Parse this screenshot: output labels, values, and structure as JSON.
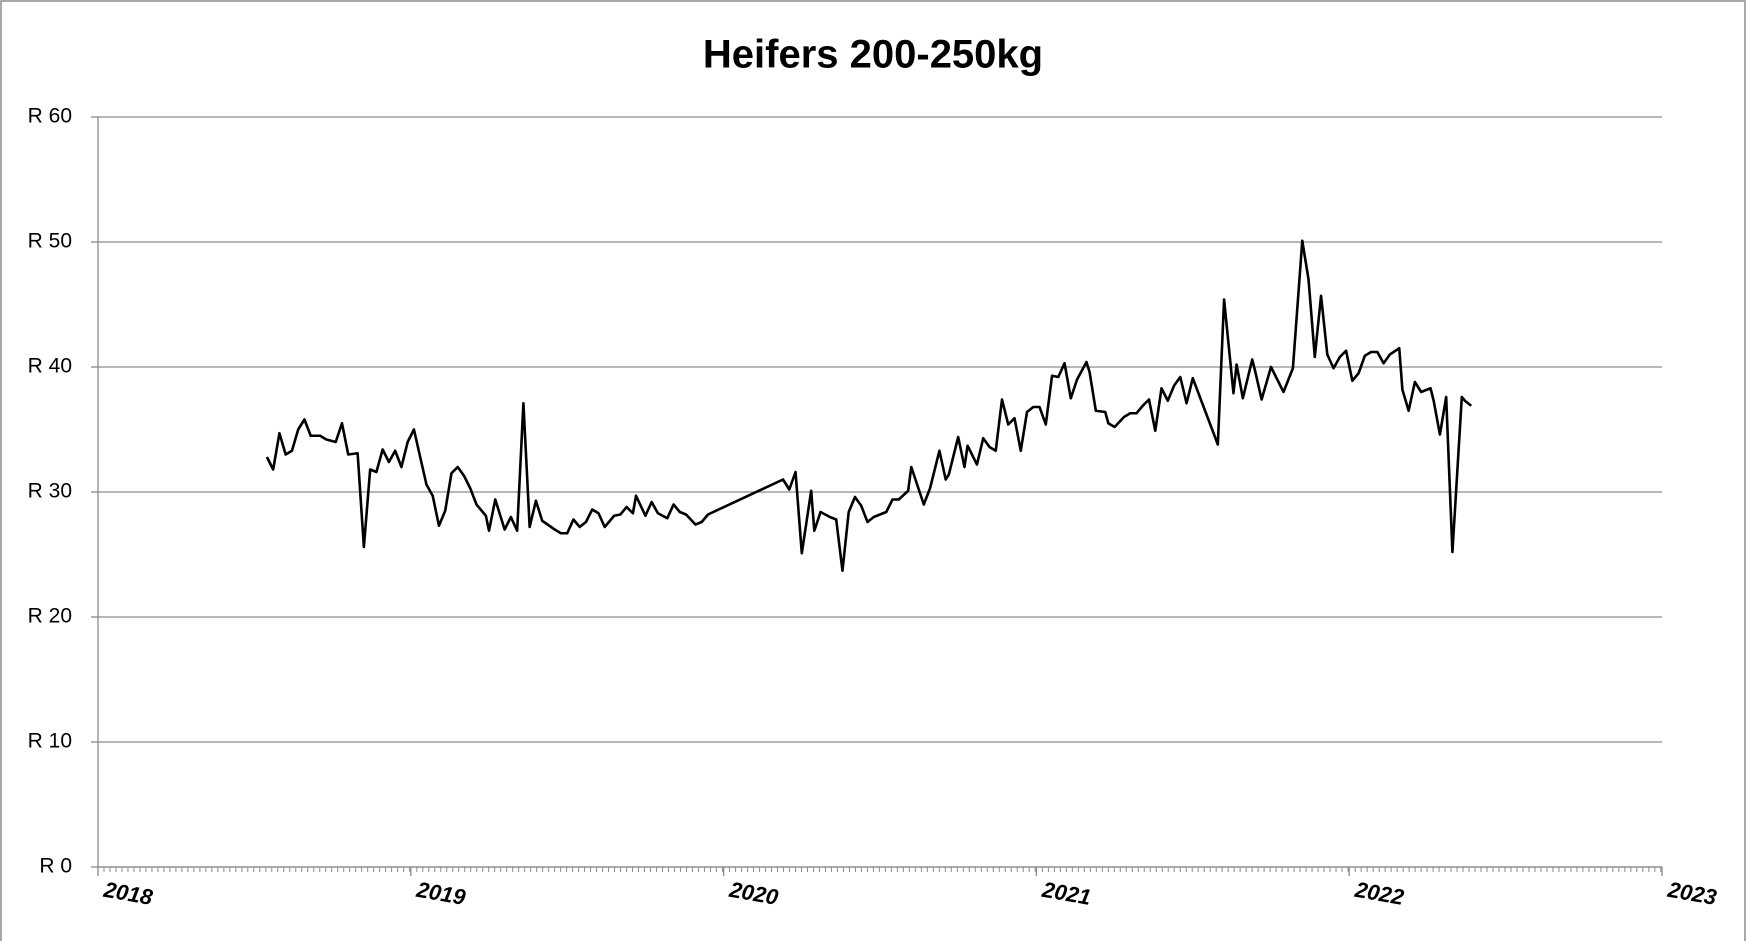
{
  "chart_data": {
    "type": "line",
    "title": "Heifers 200-250kg",
    "xlim": [
      2018,
      2023
    ],
    "xticks": [
      2018,
      2019,
      2020,
      2021,
      2022,
      2023
    ],
    "ylim": [
      0,
      60
    ],
    "yticks": [
      {
        "value": 0,
        "label": "R 0"
      },
      {
        "value": 10,
        "label": "R 10"
      },
      {
        "value": 20,
        "label": "R 20"
      },
      {
        "value": 30,
        "label": "R 30"
      },
      {
        "value": 40,
        "label": "R 40"
      },
      {
        "value": 50,
        "label": "R 50"
      },
      {
        "value": 60,
        "label": "R 60"
      }
    ],
    "grid": true,
    "series": [
      {
        "color": "#000000",
        "x": [
          2018.54,
          2018.56,
          2018.58,
          2018.6,
          2018.62,
          2018.64,
          2018.66,
          2018.68,
          2018.71,
          2018.73,
          2018.76,
          2018.78,
          2018.8,
          2018.83,
          2018.85,
          2018.87,
          2018.89,
          2018.91,
          2018.93,
          2018.95,
          2018.97,
          2018.99,
          2019.01,
          2019.05,
          2019.07,
          2019.09,
          2019.11,
          2019.13,
          2019.15,
          2019.17,
          2019.19,
          2019.21,
          2019.24,
          2019.25,
          2019.27,
          2019.3,
          2019.32,
          2019.34,
          2019.36,
          2019.38,
          2019.4,
          2019.42,
          2019.46,
          2019.48,
          2019.5,
          2019.52,
          2019.54,
          2019.56,
          2019.58,
          2019.6,
          2019.62,
          2019.65,
          2019.67,
          2019.69,
          2019.71,
          2019.72,
          2019.75,
          2019.77,
          2019.79,
          2019.82,
          2019.84,
          2019.86,
          2019.88,
          2019.91,
          2019.93,
          2019.95,
          2020.19,
          2020.21,
          2020.23,
          2020.25,
          2020.28,
          2020.29,
          2020.31,
          2020.34,
          2020.36,
          2020.38,
          2020.4,
          2020.42,
          2020.44,
          2020.46,
          2020.48,
          2020.5,
          2020.52,
          2020.54,
          2020.56,
          2020.59,
          2020.6,
          2020.62,
          2020.64,
          2020.66,
          2020.69,
          2020.71,
          2020.72,
          2020.75,
          2020.77,
          2020.78,
          2020.81,
          2020.83,
          2020.85,
          2020.87,
          2020.89,
          2020.91,
          2020.93,
          2020.95,
          2020.97,
          2020.99,
          2021.01,
          2021.03,
          2021.05,
          2021.07,
          2021.09,
          2021.11,
          2021.13,
          2021.16,
          2021.17,
          2021.19,
          2021.22,
          2021.23,
          2021.25,
          2021.28,
          2021.3,
          2021.32,
          2021.34,
          2021.36,
          2021.38,
          2021.4,
          2021.42,
          2021.44,
          2021.46,
          2021.48,
          2021.5,
          2021.58,
          2021.6,
          2021.63,
          2021.64,
          2021.66,
          2021.69,
          2021.7,
          2021.72,
          2021.75,
          2021.76,
          2021.79,
          2021.82,
          2021.85,
          2021.87,
          2021.89,
          2021.91,
          2021.93,
          2021.95,
          2021.97,
          2021.99,
          2022.01,
          2022.03,
          2022.05,
          2022.07,
          2022.09,
          2022.11,
          2022.13,
          2022.16,
          2022.17,
          2022.19,
          2022.21,
          2022.23,
          2022.26,
          2022.27,
          2022.29,
          2022.31,
          2022.33,
          2022.36,
          2022.37,
          2022.39
        ],
        "values": [
          32.8,
          31.8,
          34.7,
          33.0,
          33.3,
          35.0,
          35.8,
          34.5,
          34.5,
          34.2,
          34.0,
          35.5,
          33.0,
          33.1,
          25.6,
          31.8,
          31.6,
          33.4,
          32.4,
          33.3,
          32.0,
          34.0,
          35.0,
          30.6,
          29.7,
          27.3,
          28.5,
          31.5,
          32.0,
          31.3,
          30.3,
          29.0,
          28.1,
          26.9,
          29.4,
          27.0,
          28.0,
          26.9,
          37.1,
          27.2,
          29.3,
          27.7,
          27.0,
          26.7,
          26.7,
          27.8,
          27.2,
          27.6,
          28.6,
          28.3,
          27.2,
          28.1,
          28.2,
          28.8,
          28.3,
          29.7,
          28.1,
          29.2,
          28.3,
          27.9,
          29.0,
          28.4,
          28.2,
          27.4,
          27.6,
          28.2,
          31.0,
          30.2,
          31.6,
          25.1,
          30.1,
          26.9,
          28.4,
          28.0,
          27.8,
          23.7,
          28.4,
          29.6,
          28.9,
          27.6,
          28.0,
          28.2,
          28.4,
          29.4,
          29.4,
          30.1,
          32.0,
          30.5,
          29.0,
          30.3,
          33.3,
          31.0,
          31.4,
          34.4,
          32.0,
          33.7,
          32.2,
          34.3,
          33.6,
          33.3,
          37.4,
          35.4,
          35.9,
          33.3,
          36.4,
          36.8,
          36.8,
          35.4,
          39.3,
          39.2,
          40.3,
          37.5,
          39.0,
          40.4,
          39.6,
          36.5,
          36.4,
          35.5,
          35.2,
          36.0,
          36.3,
          36.3,
          36.9,
          37.4,
          34.9,
          38.3,
          37.3,
          38.5,
          39.2,
          37.1,
          39.1,
          33.8,
          45.4,
          37.9,
          40.2,
          37.5,
          40.6,
          39.6,
          37.4,
          40.0,
          39.5,
          38.0,
          39.9,
          50.1,
          47.0,
          40.8,
          45.7,
          41.0,
          39.9,
          40.8,
          41.3,
          38.9,
          39.5,
          40.9,
          41.2,
          41.2,
          40.3,
          41.0,
          41.5,
          38.2,
          36.5,
          38.8,
          38.0,
          38.3,
          37.3,
          34.6,
          37.6,
          25.2,
          37.6,
          37.3,
          36.9
        ]
      }
    ]
  }
}
